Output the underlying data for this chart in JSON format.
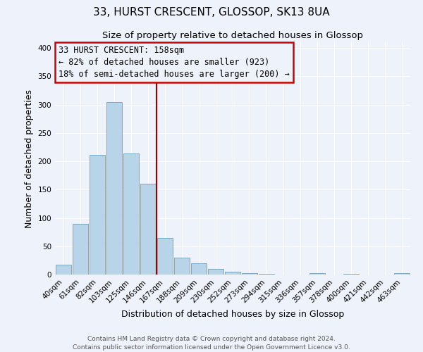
{
  "title": "33, HURST CRESCENT, GLOSSOP, SK13 8UA",
  "subtitle": "Size of property relative to detached houses in Glossop",
  "xlabel": "Distribution of detached houses by size in Glossop",
  "ylabel": "Number of detached properties",
  "footer_line1": "Contains HM Land Registry data © Crown copyright and database right 2024.",
  "footer_line2": "Contains public sector information licensed under the Open Government Licence v3.0.",
  "categories": [
    "40sqm",
    "61sqm",
    "82sqm",
    "103sqm",
    "125sqm",
    "146sqm",
    "167sqm",
    "188sqm",
    "209sqm",
    "230sqm",
    "252sqm",
    "273sqm",
    "294sqm",
    "315sqm",
    "336sqm",
    "357sqm",
    "378sqm",
    "400sqm",
    "421sqm",
    "442sqm",
    "463sqm"
  ],
  "values": [
    17,
    89,
    211,
    305,
    214,
    160,
    64,
    30,
    20,
    10,
    5,
    2,
    1,
    0,
    0,
    2,
    0,
    1,
    0,
    0,
    2
  ],
  "bar_color": "#b8d4e8",
  "bar_edge_color": "#7aaac8",
  "annotation_box_text_line1": "33 HURST CRESCENT: 158sqm",
  "annotation_box_text_line2": "← 82% of detached houses are smaller (923)",
  "annotation_box_text_line3": "18% of semi-detached houses are larger (200) →",
  "annotation_box_color": "#cc0000",
  "vline_x_index": 5.5,
  "vline_color": "#990000",
  "ylim": [
    0,
    410
  ],
  "yticks": [
    0,
    50,
    100,
    150,
    200,
    250,
    300,
    350,
    400
  ],
  "bg_color": "#eef2fa",
  "grid_color": "#ffffff",
  "title_fontsize": 11,
  "subtitle_fontsize": 9.5,
  "axis_label_fontsize": 9,
  "tick_fontsize": 7.5,
  "annotation_fontsize": 8.5,
  "footer_fontsize": 6.5
}
